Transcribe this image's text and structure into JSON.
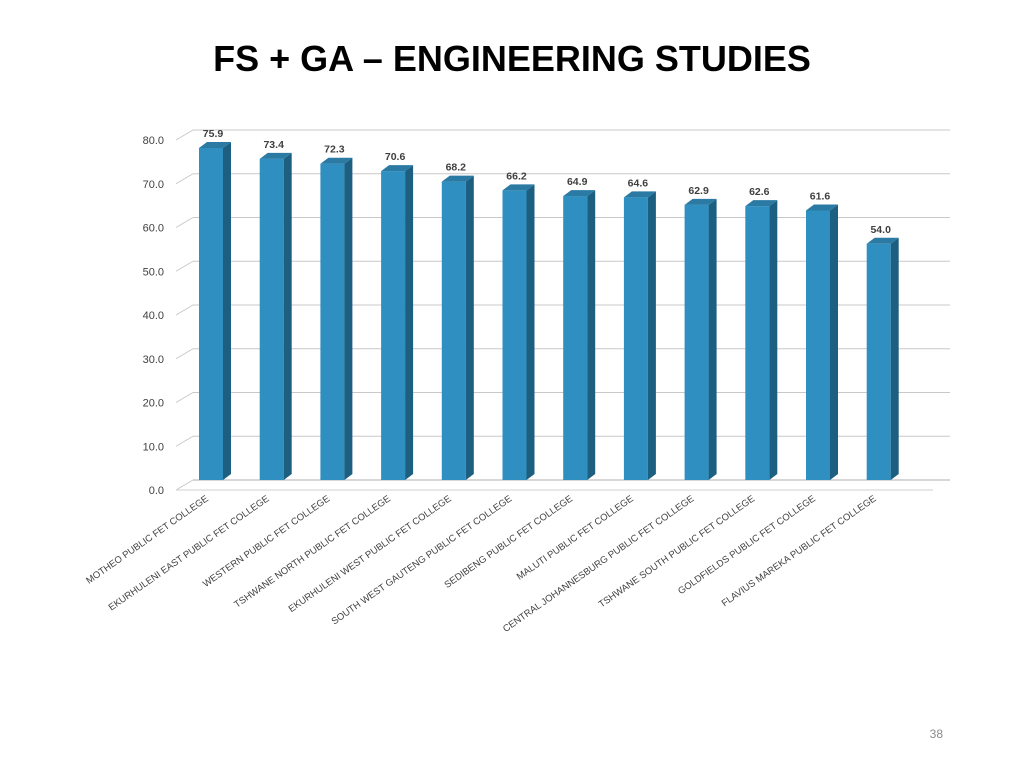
{
  "slide": {
    "title": "FS + GA – ENGINEERING STUDIES",
    "page_number": "38"
  },
  "chart_data": {
    "type": "bar",
    "title": "",
    "xlabel": "",
    "ylabel": "",
    "ylim": [
      0,
      80
    ],
    "yticks": [
      "0.0",
      "10.0",
      "20.0",
      "30.0",
      "40.0",
      "50.0",
      "60.0",
      "70.0",
      "80.0"
    ],
    "grid": true,
    "legend": "none",
    "bar_color": "#2e8fc0",
    "categories": [
      "MOTHEO PUBLIC FET COLLEGE",
      "EKURHULENI EAST PUBLIC FET COLLEGE",
      "WESTERN PUBLIC FET COLLEGE",
      "TSHWANE NORTH PUBLIC FET COLLEGE",
      "EKURHULENI WEST PUBLIC FET COLLEGE",
      "SOUTH WEST GAUTENG PUBLIC FET COLLEGE",
      "SEDIBENG PUBLIC FET COLLEGE",
      "MALUTI PUBLIC FET COLLEGE",
      "CENTRAL JOHANNESBURG PUBLIC FET COLLEGE",
      "TSHWANE SOUTH PUBLIC FET COLLEGE",
      "GOLDFIELDS PUBLIC FET COLLEGE",
      "FLAVIUS MAREKA PUBLIC FET COLLEGE"
    ],
    "values": [
      75.9,
      73.4,
      72.3,
      70.6,
      68.2,
      66.2,
      64.9,
      64.6,
      62.9,
      62.6,
      61.6,
      54.0
    ],
    "data_labels": [
      "75.9",
      "73.4",
      "72.3",
      "70.6",
      "68.2",
      "66.2",
      "64.9",
      "64.6",
      "62.9",
      "62.6",
      "61.6",
      "54.0"
    ]
  }
}
